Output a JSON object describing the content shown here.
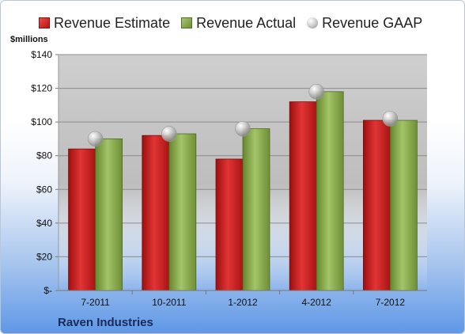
{
  "legend": {
    "estimate": "Revenue Estimate",
    "actual": "Revenue Actual",
    "gaap": "Revenue GAAP"
  },
  "y_unit": "$millions",
  "company": "Raven Industries",
  "colors": {
    "estimate": "#c41e1e",
    "actual": "#8aab4e",
    "gaap": "#b8b8b8"
  },
  "chart_data": {
    "type": "bar",
    "categories": [
      "7-2011",
      "10-2011",
      "1-2012",
      "4-2012",
      "7-2012"
    ],
    "series": [
      {
        "name": "Revenue Estimate",
        "values": [
          84,
          92,
          78,
          112,
          101
        ]
      },
      {
        "name": "Revenue Actual",
        "values": [
          90,
          93,
          96,
          118,
          101
        ]
      },
      {
        "name": "Revenue GAAP",
        "values": [
          90,
          93,
          96,
          118,
          102
        ],
        "style": "marker"
      }
    ],
    "ylim": [
      0,
      140
    ],
    "yticks": [
      0,
      20,
      40,
      60,
      80,
      100,
      120,
      140
    ],
    "ytick_labels": [
      "$-",
      "$20",
      "$40",
      "$60",
      "$80",
      "$100",
      "$120",
      "$140"
    ],
    "ylabel": "$millions",
    "grid": true,
    "legend_position": "top"
  }
}
